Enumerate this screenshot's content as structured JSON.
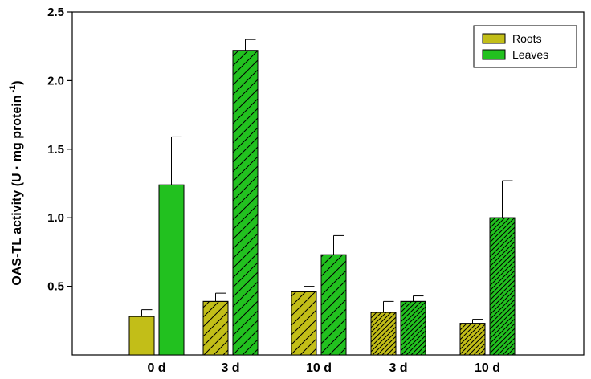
{
  "chart_data": {
    "type": "bar",
    "categories": [
      "0 d",
      "3 d",
      "10 d",
      "3 d",
      "10 d"
    ],
    "ylabel": "OAS-TL activity (U · mg protein",
    "ylabel_superscript": "-1",
    "ylabel_close": ")",
    "ylim": [
      0,
      2.5
    ],
    "yticks": [
      0.5,
      1.0,
      1.5,
      2.0,
      2.5
    ],
    "ytick_labels": [
      "0.5",
      "1.0",
      "1.5",
      "2.0",
      "2.5"
    ],
    "grid": false,
    "legend_position": "top-right",
    "series": [
      {
        "name": "Roots",
        "color": "#c2be18",
        "values": [
          0.28,
          0.39,
          0.46,
          0.31,
          0.23
        ],
        "errors": [
          0.05,
          0.06,
          0.04,
          0.08,
          0.03
        ],
        "hatch": [
          "none",
          "wide",
          "wide",
          "dense",
          "dense"
        ]
      },
      {
        "name": "Leaves",
        "color": "#22c11f",
        "values": [
          1.24,
          2.22,
          0.73,
          0.39,
          1.0
        ],
        "errors": [
          0.35,
          0.08,
          0.14,
          0.04,
          0.27
        ],
        "hatch": [
          "none",
          "wide",
          "wide",
          "dense",
          "dense"
        ]
      }
    ]
  }
}
